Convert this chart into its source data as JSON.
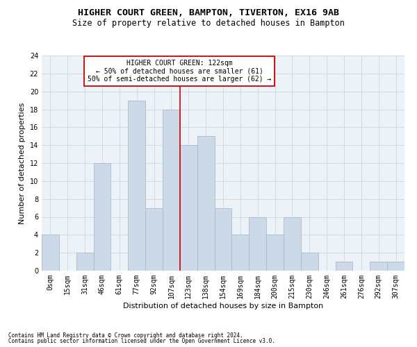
{
  "title": "HIGHER COURT GREEN, BAMPTON, TIVERTON, EX16 9AB",
  "subtitle": "Size of property relative to detached houses in Bampton",
  "xlabel": "Distribution of detached houses by size in Bampton",
  "ylabel": "Number of detached properties",
  "bar_color": "#ccd9e8",
  "bar_edge_color": "#aabbcc",
  "grid_color": "#d0dae4",
  "annotation_line_color": "#cc0000",
  "annotation_box_color": "#cc0000",
  "annotation_text": "HIGHER COURT GREEN: 122sqm\n← 50% of detached houses are smaller (61)\n50% of semi-detached houses are larger (62) →",
  "footnote1": "Contains HM Land Registry data © Crown copyright and database right 2024.",
  "footnote2": "Contains public sector information licensed under the Open Government Licence v3.0.",
  "bin_labels": [
    "0sqm",
    "15sqm",
    "31sqm",
    "46sqm",
    "61sqm",
    "77sqm",
    "92sqm",
    "107sqm",
    "123sqm",
    "138sqm",
    "154sqm",
    "169sqm",
    "184sqm",
    "200sqm",
    "215sqm",
    "230sqm",
    "246sqm",
    "261sqm",
    "276sqm",
    "292sqm",
    "307sqm"
  ],
  "bar_heights": [
    4,
    0,
    2,
    12,
    0,
    19,
    7,
    18,
    14,
    15,
    7,
    4,
    6,
    4,
    6,
    2,
    0,
    1,
    0,
    1,
    1
  ],
  "ylim": [
    0,
    24
  ],
  "yticks": [
    0,
    2,
    4,
    6,
    8,
    10,
    12,
    14,
    16,
    18,
    20,
    22,
    24
  ],
  "background_color": "#edf2f7",
  "title_fontsize": 9.5,
  "subtitle_fontsize": 8.5,
  "ylabel_fontsize": 8,
  "xlabel_fontsize": 8,
  "tick_fontsize": 7,
  "annot_fontsize": 7,
  "footnote_fontsize": 5.5
}
